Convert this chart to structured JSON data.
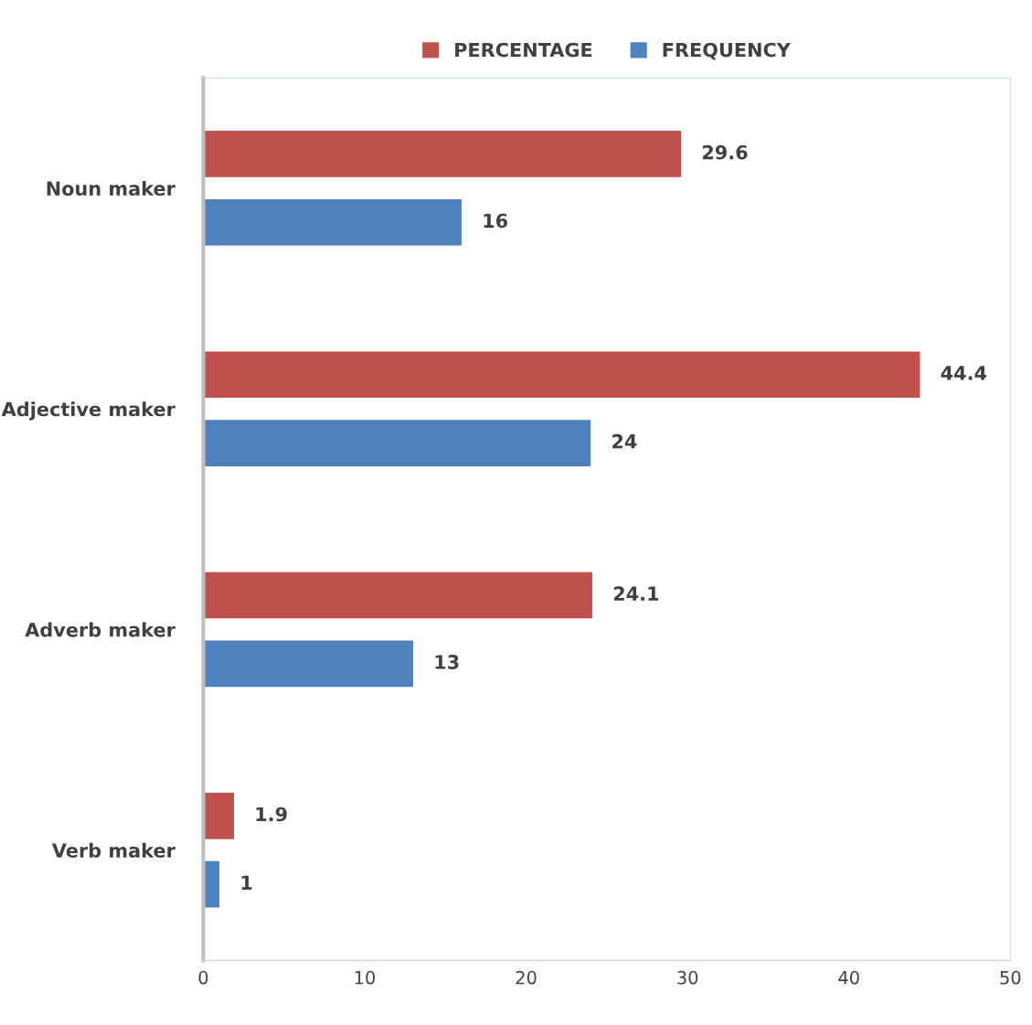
{
  "chart_data": {
    "type": "bar",
    "orientation": "horizontal",
    "categories": [
      "Noun maker",
      "Adjective maker",
      "Adverb maker",
      "Verb maker"
    ],
    "series": [
      {
        "name": "PERCENTAGE",
        "color": "#c0504d",
        "values": [
          29.6,
          44.4,
          24.1,
          1.9
        ]
      },
      {
        "name": "FREQUENCY",
        "color": "#4f81bd",
        "values": [
          16,
          24,
          13,
          1
        ]
      }
    ],
    "xlim": [
      0,
      50
    ],
    "xticks": [
      0,
      10,
      20,
      30,
      40,
      50
    ],
    "data_labels": true,
    "legend": "top",
    "grid": false
  }
}
